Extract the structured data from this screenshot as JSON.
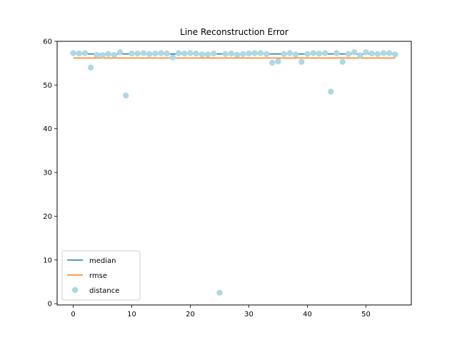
{
  "chart_data": {
    "type": "scatter",
    "title": "Line Reconstruction Error",
    "xlabel": "",
    "ylabel": "",
    "xlim": [
      -2.75,
      57.75
    ],
    "ylim": [
      -0.3,
      60
    ],
    "xticks": [
      0,
      10,
      20,
      30,
      40,
      50
    ],
    "yticks": [
      0,
      10,
      20,
      30,
      40,
      50,
      60
    ],
    "grid": false,
    "legend_position": "lower-left",
    "series": [
      {
        "name": "median",
        "type": "line",
        "color": "#1f77b4",
        "x": [
          0,
          55
        ],
        "y": [
          57.1,
          57.1
        ]
      },
      {
        "name": "rmse",
        "type": "line",
        "color": "#ff7f0e",
        "x": [
          0,
          55
        ],
        "y": [
          56.2,
          56.2
        ]
      },
      {
        "name": "distance",
        "type": "scatter",
        "color": "#add8e6",
        "x": [
          0,
          1,
          2,
          3,
          4,
          5,
          6,
          7,
          8,
          9,
          10,
          11,
          12,
          13,
          14,
          15,
          16,
          17,
          18,
          19,
          20,
          21,
          22,
          23,
          24,
          25,
          26,
          27,
          28,
          29,
          30,
          31,
          32,
          33,
          34,
          35,
          36,
          37,
          38,
          39,
          40,
          41,
          42,
          43,
          44,
          45,
          46,
          47,
          48,
          49,
          50,
          51,
          52,
          53,
          54,
          55
        ],
        "y": [
          57.3,
          57.2,
          57.3,
          54.0,
          56.9,
          56.8,
          57.1,
          56.9,
          57.5,
          47.6,
          57.2,
          57.2,
          57.3,
          57.1,
          57.2,
          57.3,
          57.2,
          56.3,
          57.3,
          57.2,
          57.3,
          57.2,
          57.0,
          57.0,
          57.2,
          2.5,
          57.1,
          57.2,
          56.9,
          57.1,
          57.2,
          57.3,
          57.3,
          57.1,
          55.1,
          55.4,
          57.1,
          57.3,
          57.0,
          55.3,
          57.1,
          57.3,
          57.2,
          57.3,
          48.5,
          57.3,
          55.3,
          57.1,
          57.5,
          56.8,
          57.5,
          57.2,
          57.1,
          57.3,
          57.3,
          57.0
        ]
      }
    ]
  }
}
